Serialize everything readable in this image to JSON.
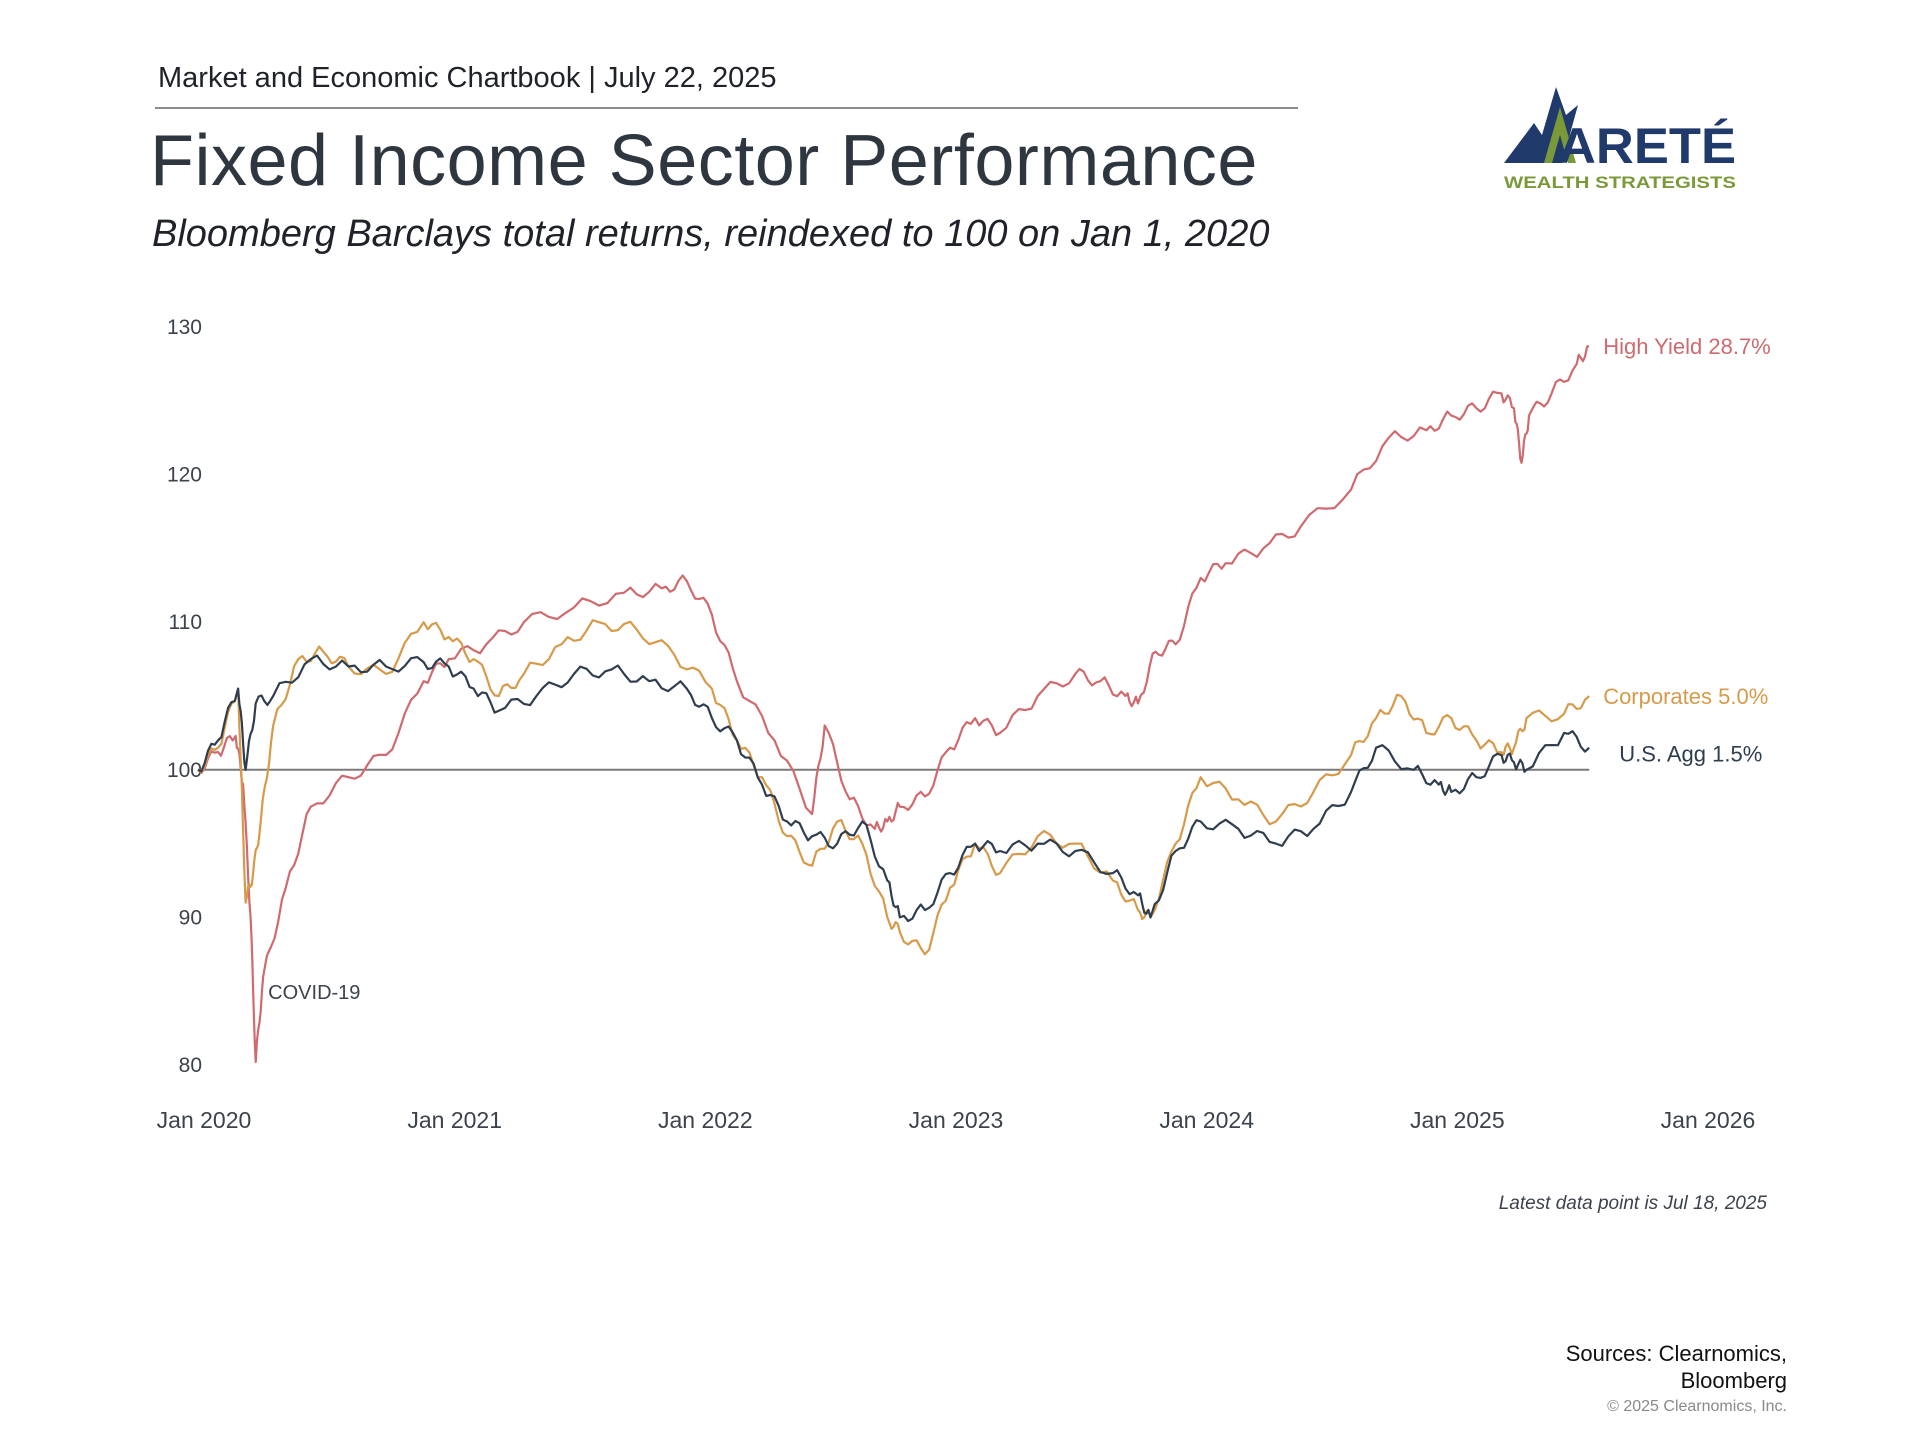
{
  "header": {
    "chartbook": "Market and Economic Chartbook | July 22, 2025",
    "title": "Fixed Income Sector Performance",
    "subtitle": "Bloomberg Barclays total returns, reindexed to 100 on Jan 1, 2020"
  },
  "logo": {
    "wordmark": "ARETÉ",
    "tagline": "WEALTH STRATEGISTS",
    "colors": {
      "navy": "#1f3a6b",
      "green": "#7a9a3a"
    }
  },
  "footer": {
    "note": "Latest data point is Jul 18, 2025",
    "sources_line1": "Sources: Clearnomics,",
    "sources_line2": "Bloomberg",
    "copyright": "© 2025 Clearnomics, Inc."
  },
  "chart_data": {
    "type": "line",
    "x_axis": {
      "min": 2020.0,
      "max": 2026.0,
      "ticks": [
        2020,
        2021,
        2022,
        2023,
        2024,
        2025,
        2026
      ],
      "tick_labels": [
        "Jan 2020",
        "Jan 2021",
        "Jan 2022",
        "Jan 2023",
        "Jan 2024",
        "Jan 2025",
        "Jan 2026"
      ]
    },
    "y_axis": {
      "min": 80,
      "max": 130,
      "ticks": [
        80,
        90,
        100,
        110,
        120,
        130
      ],
      "tick_labels": [
        "80",
        "90",
        "100",
        "110",
        "120",
        "130"
      ]
    },
    "grid": false,
    "reference_line": {
      "y": 100,
      "color": "#7a7a7a"
    },
    "annotations": [
      {
        "text": "COVID-19",
        "x": 2020.28,
        "y": 85
      }
    ],
    "series": [
      {
        "name": "High Yield",
        "end_label": "High Yield 28.7%",
        "color": "#cf6a6e",
        "x": [
          2020.0,
          2020.08,
          2020.15,
          2020.18,
          2020.21,
          2020.23,
          2020.26,
          2020.35,
          2020.45,
          2020.6,
          2020.75,
          2020.9,
          2021.0,
          2021.15,
          2021.3,
          2021.5,
          2021.7,
          2021.85,
          2021.95,
          2022.05,
          2022.15,
          2022.3,
          2022.45,
          2022.5,
          2022.6,
          2022.7,
          2022.75,
          2022.8,
          2022.9,
          2023.0,
          2023.1,
          2023.2,
          2023.35,
          2023.5,
          2023.6,
          2023.7,
          2023.75,
          2023.82,
          2023.9,
          2024.0,
          2024.1,
          2024.25,
          2024.4,
          2024.6,
          2024.75,
          2024.9,
          2025.0,
          2025.1,
          2025.2,
          2025.25,
          2025.28,
          2025.31,
          2025.4,
          2025.5,
          2025.55
        ],
        "y": [
          100.0,
          101.2,
          102.3,
          99.0,
          90.0,
          80.2,
          86.0,
          92.0,
          97.5,
          99.5,
          101.0,
          106.0,
          107.5,
          108.5,
          110.0,
          111.0,
          112.0,
          112.3,
          112.8,
          110.5,
          106.0,
          102.0,
          97.0,
          103.0,
          98.0,
          96.0,
          96.5,
          97.5,
          98.2,
          101.5,
          103.5,
          102.5,
          105.0,
          106.5,
          106.0,
          105.0,
          104.5,
          108.0,
          108.5,
          113.0,
          114.0,
          115.0,
          116.5,
          119.0,
          122.5,
          123.0,
          124.0,
          124.5,
          125.5,
          124.5,
          120.8,
          124.0,
          125.5,
          127.5,
          128.7
        ]
      },
      {
        "name": "Corporates",
        "end_label": "Corporates 5.0%",
        "color": "#d79a4a",
        "x": [
          2020.0,
          2020.08,
          2020.16,
          2020.19,
          2020.22,
          2020.25,
          2020.3,
          2020.4,
          2020.5,
          2020.6,
          2020.75,
          2020.9,
          2021.0,
          2021.1,
          2021.2,
          2021.3,
          2021.45,
          2021.6,
          2021.75,
          2021.9,
          2022.05,
          2022.15,
          2022.25,
          2022.35,
          2022.45,
          2022.55,
          2022.65,
          2022.75,
          2022.8,
          2022.9,
          2023.0,
          2023.1,
          2023.2,
          2023.35,
          2023.5,
          2023.65,
          2023.75,
          2023.8,
          2023.9,
          2024.0,
          2024.15,
          2024.3,
          2024.45,
          2024.6,
          2024.7,
          2024.8,
          2024.9,
          2025.0,
          2025.1,
          2025.2,
          2025.25,
          2025.3,
          2025.45,
          2025.55
        ],
        "y": [
          100.0,
          101.5,
          105.5,
          91.0,
          93.0,
          96.5,
          103.0,
          107.5,
          108.0,
          107.0,
          106.5,
          110.0,
          109.0,
          107.5,
          105.0,
          106.5,
          108.5,
          110.0,
          109.5,
          107.8,
          105.5,
          102.0,
          99.5,
          95.5,
          93.5,
          96.5,
          95.0,
          90.0,
          89.0,
          87.5,
          92.0,
          95.0,
          93.0,
          95.5,
          95.0,
          92.5,
          90.5,
          90.0,
          95.0,
          99.5,
          98.0,
          96.5,
          98.5,
          101.0,
          103.5,
          105.0,
          102.5,
          103.5,
          102.0,
          101.2,
          101.5,
          103.5,
          103.8,
          105.0
        ]
      },
      {
        "name": "U.S. Agg",
        "end_label": "U.S. Agg 1.5%",
        "color": "#2f3e4f",
        "x": [
          2020.0,
          2020.08,
          2020.16,
          2020.19,
          2020.23,
          2020.3,
          2020.45,
          2020.6,
          2020.75,
          2020.9,
          2021.0,
          2021.1,
          2021.2,
          2021.35,
          2021.5,
          2021.65,
          2021.8,
          2021.95,
          2022.05,
          2022.15,
          2022.25,
          2022.35,
          2022.45,
          2022.55,
          2022.65,
          2022.75,
          2022.8,
          2022.9,
          2023.0,
          2023.1,
          2023.2,
          2023.35,
          2023.5,
          2023.65,
          2023.75,
          2023.8,
          2023.9,
          2024.0,
          2024.15,
          2024.3,
          2024.45,
          2024.6,
          2024.7,
          2024.85,
          2024.95,
          2025.0,
          2025.1,
          2025.2,
          2025.25,
          2025.3,
          2025.45,
          2025.55
        ],
        "y": [
          100.0,
          102.0,
          105.5,
          100.0,
          104.5,
          105.0,
          107.5,
          107.0,
          107.0,
          107.3,
          107.0,
          105.5,
          104.0,
          105.0,
          106.5,
          106.8,
          106.0,
          105.5,
          103.5,
          102.0,
          99.0,
          96.5,
          95.5,
          95.0,
          96.5,
          92.5,
          90.0,
          90.5,
          93.0,
          95.0,
          94.5,
          95.0,
          94.5,
          93.0,
          91.5,
          90.0,
          94.5,
          96.5,
          96.0,
          95.0,
          96.0,
          98.5,
          101.5,
          100.0,
          99.0,
          98.5,
          99.5,
          101.0,
          100.5,
          100.0,
          102.5,
          101.5
        ]
      }
    ]
  }
}
